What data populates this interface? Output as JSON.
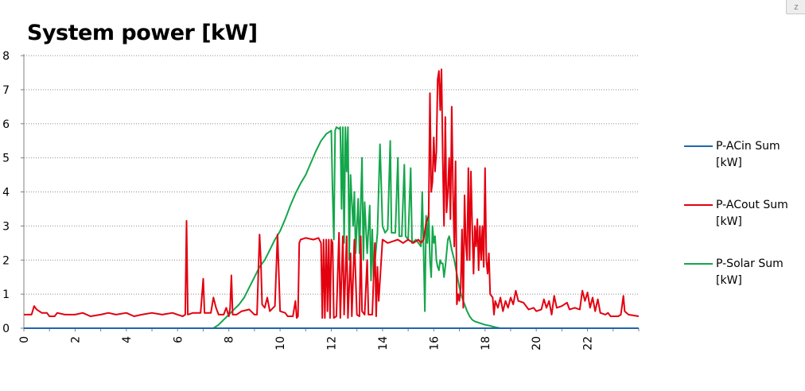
{
  "chart_data": {
    "type": "line",
    "title": "System power [kW]",
    "xlabel": "",
    "ylabel": "",
    "xlim": [
      0,
      24
    ],
    "ylim": [
      0,
      8
    ],
    "x_ticks": [
      "0",
      "2",
      "4",
      "6",
      "8",
      "10",
      "12",
      "14",
      "16",
      "18",
      "20",
      "22"
    ],
    "y_ticks": [
      "0",
      "1",
      "2",
      "3",
      "4",
      "5",
      "6",
      "7",
      "8"
    ],
    "grid": "horizontal dotted",
    "legend_position": "right",
    "series": [
      {
        "name": "P-ACin Sum [kW]",
        "color": "#2166ac",
        "points": [
          [
            0,
            0
          ],
          [
            24,
            0
          ]
        ]
      },
      {
        "name": "P-ACout Sum [kW]",
        "color": "#e3000f",
        "points": [
          [
            0,
            0.4
          ],
          [
            0.3,
            0.4
          ],
          [
            0.4,
            0.65
          ],
          [
            0.5,
            0.55
          ],
          [
            0.7,
            0.45
          ],
          [
            0.9,
            0.45
          ],
          [
            1.0,
            0.35
          ],
          [
            1.2,
            0.35
          ],
          [
            1.3,
            0.45
          ],
          [
            1.6,
            0.4
          ],
          [
            2.0,
            0.4
          ],
          [
            2.3,
            0.45
          ],
          [
            2.6,
            0.35
          ],
          [
            3.0,
            0.4
          ],
          [
            3.3,
            0.45
          ],
          [
            3.6,
            0.4
          ],
          [
            4.0,
            0.45
          ],
          [
            4.3,
            0.35
          ],
          [
            4.6,
            0.4
          ],
          [
            5.0,
            0.45
          ],
          [
            5.4,
            0.4
          ],
          [
            5.8,
            0.45
          ],
          [
            6.0,
            0.4
          ],
          [
            6.2,
            0.35
          ],
          [
            6.3,
            0.4
          ],
          [
            6.35,
            3.15
          ],
          [
            6.4,
            0.4
          ],
          [
            6.6,
            0.45
          ],
          [
            6.9,
            0.45
          ],
          [
            7.0,
            1.45
          ],
          [
            7.05,
            0.45
          ],
          [
            7.3,
            0.45
          ],
          [
            7.4,
            0.9
          ],
          [
            7.5,
            0.6
          ],
          [
            7.6,
            0.4
          ],
          [
            7.8,
            0.4
          ],
          [
            7.9,
            0.6
          ],
          [
            8.0,
            0.35
          ],
          [
            8.05,
            0.6
          ],
          [
            8.1,
            1.55
          ],
          [
            8.15,
            0.4
          ],
          [
            8.3,
            0.4
          ],
          [
            8.5,
            0.5
          ],
          [
            8.8,
            0.55
          ],
          [
            9.0,
            0.4
          ],
          [
            9.1,
            0.4
          ],
          [
            9.2,
            2.75
          ],
          [
            9.25,
            2.0
          ],
          [
            9.3,
            0.7
          ],
          [
            9.4,
            0.6
          ],
          [
            9.5,
            0.9
          ],
          [
            9.6,
            0.5
          ],
          [
            9.8,
            0.65
          ],
          [
            9.9,
            2.75
          ],
          [
            10.0,
            0.5
          ],
          [
            10.2,
            0.45
          ],
          [
            10.3,
            0.35
          ],
          [
            10.5,
            0.35
          ],
          [
            10.6,
            0.8
          ],
          [
            10.65,
            0.3
          ],
          [
            10.7,
            0.35
          ],
          [
            10.75,
            2.5
          ],
          [
            10.8,
            2.6
          ],
          [
            11.0,
            2.65
          ],
          [
            11.3,
            2.6
          ],
          [
            11.5,
            2.65
          ],
          [
            11.6,
            2.5
          ],
          [
            11.65,
            0.3
          ],
          [
            11.7,
            2.6
          ],
          [
            11.75,
            0.3
          ],
          [
            11.8,
            2.6
          ],
          [
            11.85,
            0.5
          ],
          [
            11.9,
            2.6
          ],
          [
            11.95,
            0.3
          ],
          [
            12.0,
            2.6
          ],
          [
            12.05,
            2.5
          ],
          [
            12.1,
            0.3
          ],
          [
            12.2,
            0.35
          ],
          [
            12.3,
            2.8
          ],
          [
            12.35,
            0.3
          ],
          [
            12.45,
            2.7
          ],
          [
            12.5,
            0.4
          ],
          [
            12.6,
            2.7
          ],
          [
            12.65,
            0.3
          ],
          [
            12.75,
            2.2
          ],
          [
            12.8,
            0.35
          ],
          [
            12.9,
            2.6
          ],
          [
            13.0,
            0.4
          ],
          [
            13.1,
            0.35
          ],
          [
            13.15,
            2.7
          ],
          [
            13.2,
            0.5
          ],
          [
            13.3,
            0.4
          ],
          [
            13.4,
            2.0
          ],
          [
            13.45,
            0.4
          ],
          [
            13.6,
            0.4
          ],
          [
            13.7,
            2.5
          ],
          [
            13.75,
            0.35
          ],
          [
            13.8,
            1.8
          ],
          [
            13.85,
            0.8
          ],
          [
            14.0,
            2.6
          ],
          [
            14.2,
            2.5
          ],
          [
            14.4,
            2.55
          ],
          [
            14.6,
            2.6
          ],
          [
            14.8,
            2.5
          ],
          [
            15.0,
            2.6
          ],
          [
            15.2,
            2.5
          ],
          [
            15.4,
            2.6
          ],
          [
            15.5,
            2.5
          ],
          [
            15.6,
            2.6
          ],
          [
            15.7,
            3.1
          ],
          [
            15.8,
            3.3
          ],
          [
            15.85,
            6.9
          ],
          [
            15.9,
            4.0
          ],
          [
            15.95,
            4.3
          ],
          [
            16.0,
            5.6
          ],
          [
            16.05,
            4.6
          ],
          [
            16.1,
            5.2
          ],
          [
            16.15,
            7.3
          ],
          [
            16.2,
            7.55
          ],
          [
            16.25,
            6.4
          ],
          [
            16.3,
            7.6
          ],
          [
            16.35,
            5.0
          ],
          [
            16.4,
            3.0
          ],
          [
            16.45,
            6.2
          ],
          [
            16.5,
            3.4
          ],
          [
            16.55,
            4.0
          ],
          [
            16.6,
            5.0
          ],
          [
            16.65,
            3.2
          ],
          [
            16.7,
            6.5
          ],
          [
            16.75,
            4.0
          ],
          [
            16.8,
            2.4
          ],
          [
            16.85,
            4.9
          ],
          [
            16.9,
            0.7
          ],
          [
            16.95,
            1.0
          ],
          [
            17.0,
            0.8
          ],
          [
            17.05,
            1.2
          ],
          [
            17.1,
            2.9
          ],
          [
            17.15,
            0.6
          ],
          [
            17.2,
            3.9
          ],
          [
            17.25,
            2.5
          ],
          [
            17.3,
            2.0
          ],
          [
            17.35,
            4.7
          ],
          [
            17.4,
            2.0
          ],
          [
            17.45,
            4.6
          ],
          [
            17.5,
            3.0
          ],
          [
            17.55,
            1.6
          ],
          [
            17.6,
            3.0
          ],
          [
            17.65,
            2.4
          ],
          [
            17.7,
            3.2
          ],
          [
            17.75,
            1.7
          ],
          [
            17.8,
            3.0
          ],
          [
            17.85,
            2.0
          ],
          [
            17.9,
            3.0
          ],
          [
            17.95,
            1.8
          ],
          [
            18.0,
            4.7
          ],
          [
            18.05,
            2.0
          ],
          [
            18.1,
            1.6
          ],
          [
            18.15,
            2.2
          ],
          [
            18.2,
            1.0
          ],
          [
            18.3,
            0.9
          ],
          [
            18.35,
            0.4
          ],
          [
            18.4,
            0.8
          ],
          [
            18.5,
            0.6
          ],
          [
            18.6,
            0.9
          ],
          [
            18.7,
            0.5
          ],
          [
            18.8,
            0.8
          ],
          [
            18.9,
            0.6
          ],
          [
            19.0,
            0.9
          ],
          [
            19.1,
            0.7
          ],
          [
            19.2,
            1.1
          ],
          [
            19.3,
            0.8
          ],
          [
            19.5,
            0.75
          ],
          [
            19.7,
            0.55
          ],
          [
            19.9,
            0.6
          ],
          [
            20.0,
            0.5
          ],
          [
            20.2,
            0.55
          ],
          [
            20.3,
            0.85
          ],
          [
            20.4,
            0.6
          ],
          [
            20.5,
            0.8
          ],
          [
            20.6,
            0.4
          ],
          [
            20.7,
            0.95
          ],
          [
            20.8,
            0.6
          ],
          [
            21.0,
            0.65
          ],
          [
            21.2,
            0.75
          ],
          [
            21.3,
            0.55
          ],
          [
            21.5,
            0.6
          ],
          [
            21.7,
            0.55
          ],
          [
            21.8,
            1.1
          ],
          [
            21.9,
            0.8
          ],
          [
            22.0,
            1.05
          ],
          [
            22.1,
            0.6
          ],
          [
            22.2,
            0.9
          ],
          [
            22.3,
            0.5
          ],
          [
            22.4,
            0.85
          ],
          [
            22.5,
            0.45
          ],
          [
            22.7,
            0.4
          ],
          [
            22.8,
            0.45
          ],
          [
            22.9,
            0.35
          ],
          [
            23.2,
            0.35
          ],
          [
            23.3,
            0.4
          ],
          [
            23.4,
            0.95
          ],
          [
            23.45,
            0.5
          ],
          [
            23.6,
            0.4
          ],
          [
            24.0,
            0.35
          ]
        ]
      },
      {
        "name": "P-Solar Sum [kW]",
        "color": "#14a64b",
        "points": [
          [
            0,
            0
          ],
          [
            7.4,
            0
          ],
          [
            7.6,
            0.1
          ],
          [
            7.8,
            0.25
          ],
          [
            8.0,
            0.4
          ],
          [
            8.2,
            0.55
          ],
          [
            8.4,
            0.7
          ],
          [
            8.6,
            0.9
          ],
          [
            8.8,
            1.2
          ],
          [
            9.0,
            1.5
          ],
          [
            9.2,
            1.8
          ],
          [
            9.4,
            2.0
          ],
          [
            9.6,
            2.3
          ],
          [
            9.8,
            2.6
          ],
          [
            10.0,
            2.85
          ],
          [
            10.2,
            3.2
          ],
          [
            10.4,
            3.6
          ],
          [
            10.6,
            3.95
          ],
          [
            10.8,
            4.25
          ],
          [
            11.0,
            4.5
          ],
          [
            11.2,
            4.85
          ],
          [
            11.4,
            5.2
          ],
          [
            11.6,
            5.5
          ],
          [
            11.8,
            5.7
          ],
          [
            12.0,
            5.8
          ],
          [
            12.05,
            4.0
          ],
          [
            12.1,
            2.6
          ],
          [
            12.15,
            5.8
          ],
          [
            12.2,
            5.9
          ],
          [
            12.3,
            5.85
          ],
          [
            12.35,
            5.9
          ],
          [
            12.4,
            3.5
          ],
          [
            12.45,
            5.9
          ],
          [
            12.5,
            2.5
          ],
          [
            12.55,
            5.9
          ],
          [
            12.6,
            4.6
          ],
          [
            12.65,
            5.9
          ],
          [
            12.7,
            2.0
          ],
          [
            12.75,
            4.5
          ],
          [
            12.85,
            3.0
          ],
          [
            12.9,
            4.0
          ],
          [
            12.95,
            2.2
          ],
          [
            13.05,
            3.8
          ],
          [
            13.1,
            2.2
          ],
          [
            13.2,
            5.0
          ],
          [
            13.25,
            2.0
          ],
          [
            13.3,
            3.7
          ],
          [
            13.4,
            2.2
          ],
          [
            13.5,
            3.6
          ],
          [
            13.55,
            1.4
          ],
          [
            13.6,
            2.9
          ],
          [
            13.65,
            1.5
          ],
          [
            13.8,
            2.8
          ],
          [
            13.9,
            5.4
          ],
          [
            14.0,
            3.0
          ],
          [
            14.1,
            2.8
          ],
          [
            14.2,
            2.9
          ],
          [
            14.3,
            5.5
          ],
          [
            14.35,
            2.8
          ],
          [
            14.5,
            2.8
          ],
          [
            14.6,
            5.0
          ],
          [
            14.65,
            2.7
          ],
          [
            14.75,
            2.7
          ],
          [
            14.85,
            4.8
          ],
          [
            14.9,
            2.7
          ],
          [
            15.0,
            2.6
          ],
          [
            15.1,
            4.7
          ],
          [
            15.15,
            2.5
          ],
          [
            15.3,
            2.6
          ],
          [
            15.4,
            2.5
          ],
          [
            15.5,
            2.4
          ],
          [
            15.55,
            4.0
          ],
          [
            15.6,
            2.3
          ],
          [
            15.65,
            0.5
          ],
          [
            15.7,
            3.3
          ],
          [
            15.75,
            2.5
          ],
          [
            15.8,
            3.4
          ],
          [
            15.85,
            2.0
          ],
          [
            15.9,
            1.5
          ],
          [
            15.95,
            3.0
          ],
          [
            16.0,
            2.5
          ],
          [
            16.05,
            2.7
          ],
          [
            16.1,
            2.0
          ],
          [
            16.15,
            1.8
          ],
          [
            16.2,
            1.7
          ],
          [
            16.25,
            2.0
          ],
          [
            16.3,
            1.9
          ],
          [
            16.35,
            1.9
          ],
          [
            16.4,
            1.5
          ],
          [
            16.45,
            1.8
          ],
          [
            16.5,
            2.2
          ],
          [
            16.55,
            2.6
          ],
          [
            16.6,
            2.7
          ],
          [
            16.65,
            2.5
          ],
          [
            16.7,
            2.3
          ],
          [
            16.8,
            2.0
          ],
          [
            16.9,
            1.6
          ],
          [
            17.0,
            1.2
          ],
          [
            17.1,
            0.9
          ],
          [
            17.2,
            0.7
          ],
          [
            17.3,
            0.5
          ],
          [
            17.4,
            0.35
          ],
          [
            17.5,
            0.25
          ],
          [
            17.6,
            0.2
          ],
          [
            17.8,
            0.15
          ],
          [
            18.0,
            0.1
          ],
          [
            18.2,
            0.07
          ],
          [
            18.4,
            0.03
          ],
          [
            18.6,
            0
          ],
          [
            24,
            0
          ]
        ]
      }
    ]
  }
}
